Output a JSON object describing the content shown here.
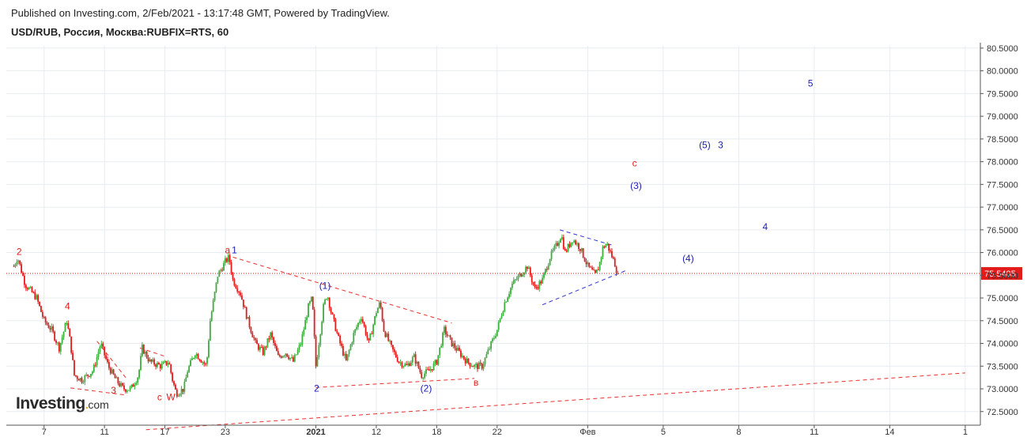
{
  "header": {
    "published": "Published on Investing.com, 2/Feb/2021 - 13:17:48 GMT, Powered by TradingView.",
    "symbol": "USD/RUB, Россия, Москва:RUBFIX=RTS, 60"
  },
  "logo": {
    "brand": "Investing",
    "suffix": "com"
  },
  "colors": {
    "bull": "#3cae3c",
    "bear": "#e21b1b",
    "wave_red": "#e21b1b",
    "wave_blue": "#1c1cb4",
    "trend_red": "#e8312f",
    "trend_blue": "#3232d2",
    "grid": "#e8ecf0",
    "price_tag": "#e21b1b"
  },
  "chart_data": {
    "type": "candlestick",
    "timeframe": "60",
    "ylim": [
      72.2,
      80.55
    ],
    "x_ticks": [
      {
        "label": "7",
        "t": 4
      },
      {
        "label": "11",
        "t": 12
      },
      {
        "label": "17",
        "t": 20
      },
      {
        "label": "23",
        "t": 28
      },
      {
        "label": "2021",
        "t": 40,
        "bold": true
      },
      {
        "label": "12",
        "t": 48
      },
      {
        "label": "18",
        "t": 56
      },
      {
        "label": "22",
        "t": 64
      },
      {
        "label": "Фев",
        "t": 76
      },
      {
        "label": "5",
        "t": 86
      },
      {
        "label": "8",
        "t": 96
      },
      {
        "label": "11",
        "t": 106
      },
      {
        "label": "14",
        "t": 116
      },
      {
        "label": "1",
        "t": 126
      }
    ],
    "y_ticks": [
      "72.5000",
      "73.0000",
      "73.5000",
      "74.0000",
      "74.5000",
      "75.0000",
      "75.5000",
      "76.0000",
      "76.5000",
      "77.0000",
      "77.5000",
      "78.0000",
      "78.5000",
      "79.0000",
      "79.5000",
      "80.0000",
      "80.5000"
    ],
    "last_price": "75.5405",
    "last_price_value": 75.5405,
    "path_points": [
      [
        0,
        75.7
      ],
      [
        0.5,
        75.9
      ],
      [
        1.5,
        75.3
      ],
      [
        3,
        75.0
      ],
      [
        4,
        74.5
      ],
      [
        5,
        74.3
      ],
      [
        6,
        73.9
      ],
      [
        7,
        74.5
      ],
      [
        7.5,
        74.0
      ],
      [
        8,
        73.3
      ],
      [
        9,
        73.2
      ],
      [
        10.5,
        73.4
      ],
      [
        11.5,
        74.0
      ],
      [
        12.5,
        73.5
      ],
      [
        13.5,
        73.2
      ],
      [
        14.5,
        73.0
      ],
      [
        15.5,
        73.0
      ],
      [
        16.5,
        73.3
      ],
      [
        17,
        73.9
      ],
      [
        18,
        73.6
      ],
      [
        19.5,
        73.5
      ],
      [
        20.5,
        73.6
      ],
      [
        21,
        73.2
      ],
      [
        21.5,
        72.9
      ],
      [
        22.5,
        73.0
      ],
      [
        23,
        73.4
      ],
      [
        24,
        73.8
      ],
      [
        25,
        73.6
      ],
      [
        25.5,
        73.5
      ],
      [
        26,
        74.5
      ],
      [
        27,
        75.5
      ],
      [
        28,
        75.8
      ],
      [
        28.5,
        75.9
      ],
      [
        29,
        75.4
      ],
      [
        30,
        75.1
      ],
      [
        31,
        74.5
      ],
      [
        32,
        74.0
      ],
      [
        33,
        73.8
      ],
      [
        34,
        74.2
      ],
      [
        35,
        73.7
      ],
      [
        36,
        73.8
      ],
      [
        37,
        73.6
      ],
      [
        38,
        74.0
      ],
      [
        39,
        74.8
      ],
      [
        39.5,
        75.0
      ],
      [
        40,
        73.5
      ],
      [
        41,
        74.8
      ],
      [
        41.5,
        75.1
      ],
      [
        42,
        74.7
      ],
      [
        43,
        74.1
      ],
      [
        44,
        73.6
      ],
      [
        45,
        74.2
      ],
      [
        46,
        74.6
      ],
      [
        47,
        74.0
      ],
      [
        48,
        74.7
      ],
      [
        48.5,
        74.9
      ],
      [
        49,
        74.3
      ],
      [
        50,
        73.9
      ],
      [
        51,
        73.6
      ],
      [
        52,
        73.5
      ],
      [
        53,
        73.7
      ],
      [
        54,
        73.3
      ],
      [
        55,
        73.4
      ],
      [
        56,
        73.6
      ],
      [
        57,
        74.3
      ],
      [
        58,
        74.0
      ],
      [
        59,
        73.8
      ],
      [
        60,
        73.6
      ],
      [
        61,
        73.5
      ],
      [
        62,
        73.5
      ],
      [
        63,
        73.9
      ],
      [
        64,
        74.3
      ],
      [
        65,
        74.9
      ],
      [
        66,
        75.3
      ],
      [
        67,
        75.5
      ],
      [
        68,
        75.7
      ],
      [
        69,
        75.2
      ],
      [
        70,
        75.4
      ],
      [
        71,
        75.9
      ],
      [
        72,
        76.2
      ],
      [
        72.5,
        76.4
      ],
      [
        73,
        76.0
      ],
      [
        74,
        76.3
      ],
      [
        75,
        76.1
      ],
      [
        76,
        75.7
      ],
      [
        77,
        75.5
      ],
      [
        77.5,
        75.7
      ],
      [
        78,
        76.1
      ],
      [
        78.5,
        76.2
      ],
      [
        79,
        76.0
      ],
      [
        79.5,
        75.8
      ],
      [
        80,
        75.54
      ]
    ],
    "annotations": [
      {
        "text": "2",
        "t": 0.7,
        "v": 75.95,
        "color": "red"
      },
      {
        "text": "4",
        "t": 7.1,
        "v": 74.75,
        "color": "red"
      },
      {
        "text": "3",
        "t": 13.2,
        "v": 72.9,
        "color": "red"
      },
      {
        "text": "c",
        "t": 19.3,
        "v": 72.75,
        "color": "red"
      },
      {
        "text": "W",
        "t": 20.8,
        "v": 72.75,
        "color": "red"
      },
      {
        "text": "a",
        "t": 28.3,
        "v": 75.98,
        "color": "red"
      },
      {
        "text": "1",
        "t": 29.2,
        "v": 75.98,
        "color": "blue"
      },
      {
        "text": "(1)",
        "t": 41.2,
        "v": 75.2,
        "color": "blue"
      },
      {
        "text": "2",
        "t": 40.1,
        "v": 72.94,
        "color": "blue"
      },
      {
        "text": "(2)",
        "t": 54.6,
        "v": 72.94,
        "color": "blue"
      },
      {
        "text": "в",
        "t": 61.2,
        "v": 73.07,
        "color": "red"
      },
      {
        "text": "c",
        "t": 82.2,
        "v": 77.9,
        "color": "red"
      },
      {
        "text": "(3)",
        "t": 82.4,
        "v": 77.4,
        "color": "blue"
      },
      {
        "text": "(5)",
        "t": 91.5,
        "v": 78.3,
        "color": "blue"
      },
      {
        "text": "3",
        "t": 93.6,
        "v": 78.3,
        "color": "blue"
      },
      {
        "text": "(4)",
        "t": 89.3,
        "v": 75.8,
        "color": "blue"
      },
      {
        "text": "4",
        "t": 99.5,
        "v": 76.5,
        "color": "blue"
      },
      {
        "text": "5",
        "t": 105.5,
        "v": 79.65,
        "color": "blue"
      }
    ],
    "trendlines": [
      {
        "from": [
          29,
          75.9
        ],
        "to": [
          58,
          74.45
        ],
        "color": "red"
      },
      {
        "from": [
          40,
          73.03
        ],
        "to": [
          61,
          73.23
        ],
        "color": "red"
      },
      {
        "from": [
          7.5,
          73.02
        ],
        "to": [
          15,
          72.86
        ],
        "color": "red"
      },
      {
        "from": [
          11,
          74.05
        ],
        "to": [
          14.8,
          73.25
        ],
        "color": "red"
      },
      {
        "from": [
          16.7,
          73.9
        ],
        "to": [
          20.3,
          73.7
        ],
        "color": "red"
      },
      {
        "from": [
          17.5,
          72.1
        ],
        "to": [
          126,
          73.35
        ],
        "color": "red"
      },
      {
        "from": [
          72.3,
          76.5
        ],
        "to": [
          79.5,
          76.15
        ],
        "color": "blue"
      },
      {
        "from": [
          70,
          74.85
        ],
        "to": [
          81,
          75.6
        ],
        "color": "blue"
      }
    ]
  }
}
